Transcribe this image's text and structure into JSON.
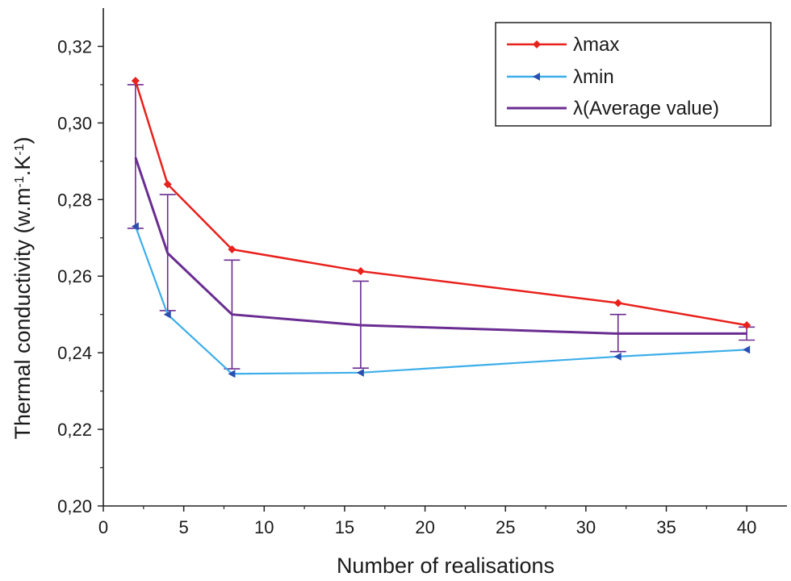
{
  "chart_data": {
    "type": "line",
    "title": "",
    "xlabel": "Number of realisations",
    "ylabel": {
      "base": "Thermal conductivity (w.m",
      "sup1": "-1",
      "mid": ".K",
      "sup2": "-1",
      "end": ")"
    },
    "xlim": [
      0,
      42.5
    ],
    "ylim": [
      0.2,
      0.33
    ],
    "xticks": [
      0,
      5,
      10,
      15,
      20,
      25,
      30,
      35,
      40
    ],
    "xtick_labels": [
      "0",
      "5",
      "10",
      "15",
      "20",
      "25",
      "30",
      "35",
      "40"
    ],
    "yticks": [
      0.2,
      0.22,
      0.24,
      0.26,
      0.28,
      0.3,
      0.32
    ],
    "ytick_labels": [
      "0,20",
      "0,22",
      "0,24",
      "0,26",
      "0,28",
      "0,30",
      "0,32"
    ],
    "x": [
      2,
      4,
      8,
      16,
      32,
      40
    ],
    "series": [
      {
        "name": "λmax",
        "color": "#e8211c",
        "marker": "diamond",
        "values": [
          0.311,
          0.284,
          0.267,
          0.2613,
          0.253,
          0.2472
        ]
      },
      {
        "name": "λmin",
        "color": "#3daee9",
        "marker": "left-triangle",
        "values": [
          0.273,
          0.25,
          0.2345,
          0.2348,
          0.239,
          0.2408
        ]
      },
      {
        "name": "λ(Average value)",
        "color": "#6a2d91",
        "marker": "none",
        "values": [
          0.291,
          0.266,
          0.25,
          0.2472,
          0.245,
          0.245
        ],
        "error_low": [
          0.2725,
          0.251,
          0.2358,
          0.236,
          0.2403,
          0.2433
        ],
        "error_high": [
          0.31,
          0.2813,
          0.2642,
          0.2587,
          0.25,
          0.2467
        ]
      }
    ],
    "legend_position": "top-right",
    "grid": false
  }
}
